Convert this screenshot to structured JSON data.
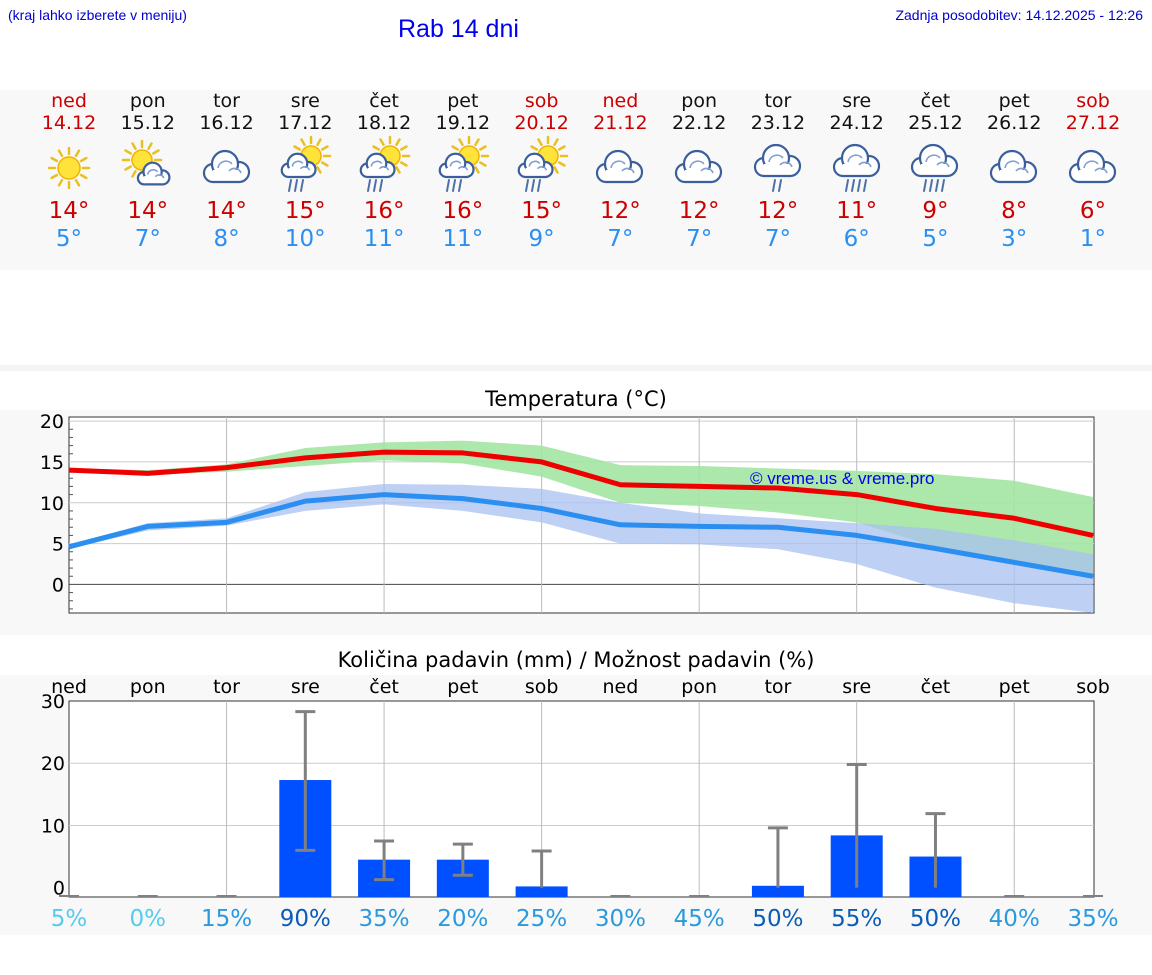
{
  "header": {
    "hint": "(kraj lahko izberete v meniju)",
    "title": "Rab 14 dni",
    "updated": "Zadnja posodobitev: 14.12.2025 - 12:26"
  },
  "days": [
    {
      "name": "ned",
      "date": "14.12",
      "weekend": true,
      "icon": "sun",
      "tmax": "14°",
      "tmin": "5°"
    },
    {
      "name": "pon",
      "date": "15.12",
      "weekend": false,
      "icon": "sun-cloud",
      "tmax": "14°",
      "tmin": "7°"
    },
    {
      "name": "tor",
      "date": "16.12",
      "weekend": false,
      "icon": "cloud",
      "tmax": "14°",
      "tmin": "8°"
    },
    {
      "name": "sre",
      "date": "17.12",
      "weekend": false,
      "icon": "sun-cloud-rain",
      "tmax": "15°",
      "tmin": "10°"
    },
    {
      "name": "čet",
      "date": "18.12",
      "weekend": false,
      "icon": "sun-cloud-rain",
      "tmax": "16°",
      "tmin": "11°"
    },
    {
      "name": "pet",
      "date": "19.12",
      "weekend": false,
      "icon": "sun-cloud-rain",
      "tmax": "16°",
      "tmin": "11°"
    },
    {
      "name": "sob",
      "date": "20.12",
      "weekend": true,
      "icon": "sun-cloud-rain",
      "tmax": "15°",
      "tmin": "9°"
    },
    {
      "name": "ned",
      "date": "21.12",
      "weekend": true,
      "icon": "cloud",
      "tmax": "12°",
      "tmin": "7°"
    },
    {
      "name": "pon",
      "date": "22.12",
      "weekend": false,
      "icon": "cloud",
      "tmax": "12°",
      "tmin": "7°"
    },
    {
      "name": "tor",
      "date": "23.12",
      "weekend": false,
      "icon": "cloud-rain",
      "tmax": "12°",
      "tmin": "7°"
    },
    {
      "name": "sre",
      "date": "24.12",
      "weekend": false,
      "icon": "cloud-heavy-rain",
      "tmax": "11°",
      "tmin": "6°"
    },
    {
      "name": "čet",
      "date": "25.12",
      "weekend": false,
      "icon": "cloud-heavy-rain",
      "tmax": "9°",
      "tmin": "5°"
    },
    {
      "name": "pet",
      "date": "26.12",
      "weekend": false,
      "icon": "cloud",
      "tmax": "8°",
      "tmin": "3°"
    },
    {
      "name": "sob",
      "date": "27.12",
      "weekend": true,
      "icon": "cloud",
      "tmax": "6°",
      "tmin": "1°"
    }
  ],
  "colors": {
    "weekend": "#cc0000",
    "weekday": "#111111",
    "tmax": "#ee0000",
    "tmin": "#2a8ff0",
    "tmax_band": "#a3e4a3",
    "tmin_band": "#a9c0f2",
    "bar": "#0050ff",
    "errbar": "#808080"
  },
  "chart_data": [
    {
      "type": "line",
      "title": "Temperatura (°C)",
      "ylim": [
        -3.5,
        20.5
      ],
      "yticks": [
        "20",
        "15",
        "10",
        "5",
        "0"
      ],
      "x": [
        0,
        1,
        2,
        3,
        4,
        5,
        6,
        7,
        8,
        9,
        10,
        11,
        12,
        13
      ],
      "series": [
        {
          "name": "max",
          "values": [
            14,
            13.6,
            14.3,
            15.5,
            16.2,
            16.1,
            15,
            12.2,
            12,
            11.8,
            11,
            9.3,
            8.1,
            6
          ],
          "band_low": [
            13.8,
            13.4,
            13.8,
            14.5,
            15.2,
            14.8,
            13.2,
            10,
            9.6,
            8.8,
            7.6,
            4.6,
            2.6,
            1
          ],
          "band_high": [
            14.2,
            14,
            14.7,
            16.7,
            17.4,
            17.6,
            17,
            14.6,
            14.5,
            14.2,
            13.9,
            13.5,
            12.7,
            10.7
          ]
        },
        {
          "name": "min",
          "values": [
            4.6,
            7.1,
            7.6,
            10.2,
            11,
            10.5,
            9.3,
            7.3,
            7.1,
            7,
            6,
            4.4,
            2.7,
            1
          ],
          "band_low": [
            4.4,
            6.6,
            7.2,
            9,
            9.8,
            9,
            7.6,
            5,
            4.9,
            4.3,
            2.5,
            -0.4,
            -2.3,
            -3.5
          ],
          "band_high": [
            4.9,
            7.5,
            8.1,
            11.3,
            12.3,
            12.2,
            11.7,
            10,
            8.7,
            8.1,
            7.5,
            6.8,
            5.4,
            3.7
          ]
        }
      ],
      "watermark": "© vreme.us & vreme.pro"
    },
    {
      "type": "bar",
      "title": "Količina padavin (mm) / Možnost padavin (%)",
      "categories": [
        "ned",
        "pon",
        "tor",
        "sre",
        "čet",
        "pet",
        "sob",
        "ned",
        "pon",
        "tor",
        "sre",
        "čet",
        "pet",
        "sob"
      ],
      "ylim": [
        -1.5,
        30
      ],
      "yticks": [
        "30",
        "20",
        "10",
        "0"
      ],
      "values": [
        0,
        0,
        0,
        17.3,
        4.5,
        4.5,
        0.2,
        0,
        0,
        0.3,
        8.4,
        5,
        0,
        0
      ],
      "err_low": [
        0,
        0,
        0,
        6,
        1.3,
        2,
        0,
        0,
        0,
        0,
        0,
        0,
        0,
        0
      ],
      "err_high": [
        0,
        0,
        0,
        28.3,
        7.5,
        7,
        5.9,
        0,
        0,
        9.6,
        19.8,
        11.9,
        0,
        0
      ],
      "probability": [
        "5%",
        "0%",
        "15%",
        "90%",
        "35%",
        "20%",
        "25%",
        "30%",
        "45%",
        "50%",
        "55%",
        "50%",
        "40%",
        "35%"
      ],
      "probability_colors": [
        "#55ccee",
        "#55ccee",
        "#2a99dd",
        "#0a5cb8",
        "#2a99dd",
        "#2a99dd",
        "#2a99dd",
        "#2a99dd",
        "#2a99dd",
        "#0a5cb8",
        "#0a5cb8",
        "#0a5cb8",
        "#2a99dd",
        "#2a99dd"
      ]
    }
  ]
}
